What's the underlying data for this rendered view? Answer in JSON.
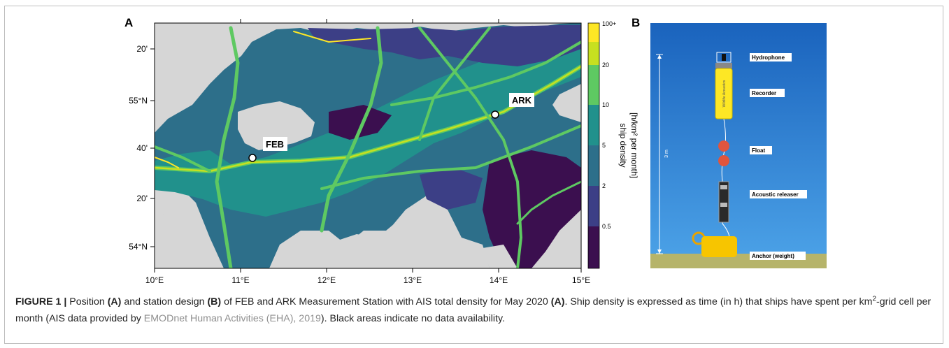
{
  "figure": {
    "panel_a_letter": "A",
    "panel_b_letter": "B",
    "map": {
      "lat_ticks": [
        "20'",
        "55°N",
        "40'",
        "20'",
        "54°N"
      ],
      "lon_ticks": [
        "10°E",
        "11°E",
        "12°E",
        "13°E",
        "14°E",
        "15°E"
      ],
      "stations": [
        {
          "label": "FEB"
        },
        {
          "label": "ARK"
        }
      ],
      "colors": {
        "land": "#d6d6d6",
        "class_0": "#3b0f4f",
        "class_1": "#3c3f86",
        "class_2": "#2d6f8a",
        "class_3": "#21918c",
        "class_4": "#5ec962",
        "class_5": "#c7e020",
        "class_6": "#fde725"
      }
    },
    "colorbar": {
      "tick_labels": [
        "100+",
        "20",
        "10",
        "5",
        "2",
        "0.5"
      ],
      "label_line1": "ship density",
      "label_line2": "[h/km² per month]"
    },
    "mooring": {
      "labels": [
        "Hydrophone",
        "Recorder",
        "Float",
        "Acoustic releaser",
        "Anchor (weight)"
      ],
      "height_label": "3 m",
      "recorder_text": "Wildlife Acoustics"
    }
  },
  "caption": {
    "fig_label": "FIGURE 1 |",
    "t1": " Position ",
    "b1": "(A)",
    "t2": " and station design ",
    "b2": "(B)",
    "t3": " of FEB and ARK Measurement Station with AIS total density for May 2020 ",
    "b3": "(A)",
    "t4": ". Ship density is expressed as time (in h) that ships have spent per km",
    "sup": "2",
    "t5": "-grid cell per month (AIS data provided by ",
    "link": "EMODnet Human Activities (EHA), 2019",
    "t6": "). Black areas indicate no data availability."
  }
}
